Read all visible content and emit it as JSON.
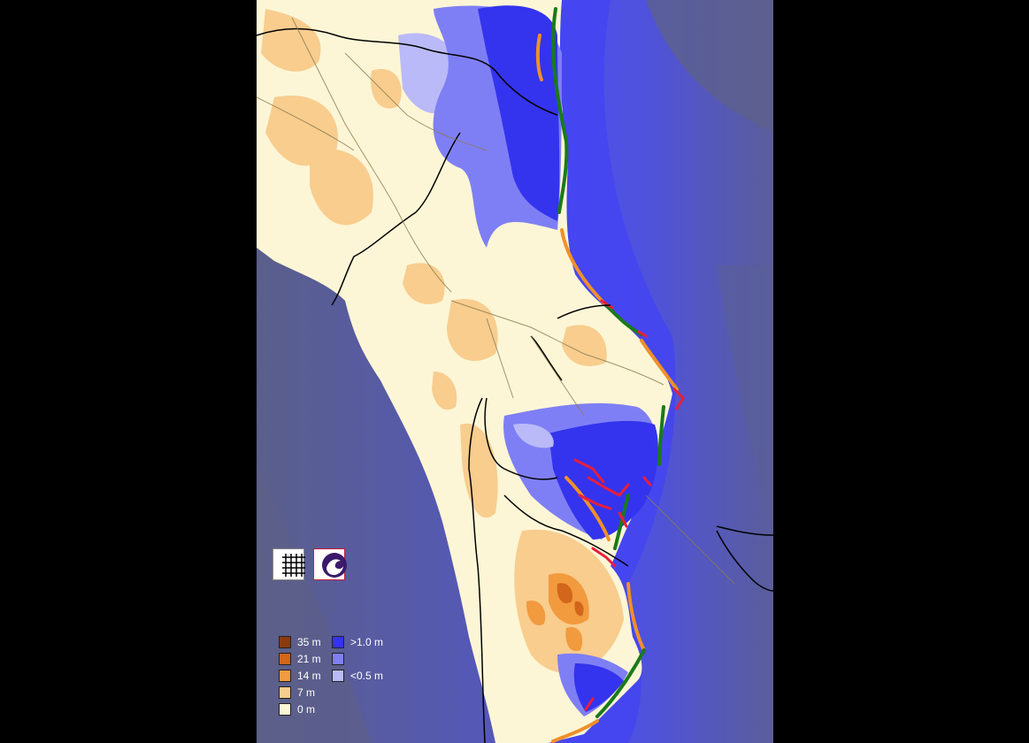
{
  "legend": {
    "elevation": [
      {
        "label": "35 m",
        "color": "#8b3a10"
      },
      {
        "label": "21 m",
        "color": "#d2661a"
      },
      {
        "label": "14 m",
        "color": "#f29a3e"
      },
      {
        "label": "7 m",
        "color": "#f8cd8e"
      },
      {
        "label": "0 m",
        "color": "#fdf6d6"
      }
    ],
    "flood_depth": [
      {
        "label": ">1.0 m",
        "color": "#3333f0"
      },
      {
        "label": "",
        "color": "#7f7ff5"
      },
      {
        "label": "<0.5 m",
        "color": "#babaf8"
      }
    ]
  },
  "controls": {
    "grid_button": "grid-icon",
    "logo_button": "wave-logo-icon"
  },
  "colors": {
    "outside": "#000000",
    "sea_deep": "#555a8c",
    "sea_mid": "#4a4ee0",
    "sea_shallow": "#5052f2",
    "land": "#fdf6d6",
    "flood": "#3434ee",
    "boundary": "#000000",
    "road": "#8a7a50",
    "shore_green": "#1a7a1a",
    "shore_orange": "#f0902a",
    "shore_red": "#e81e3c"
  }
}
